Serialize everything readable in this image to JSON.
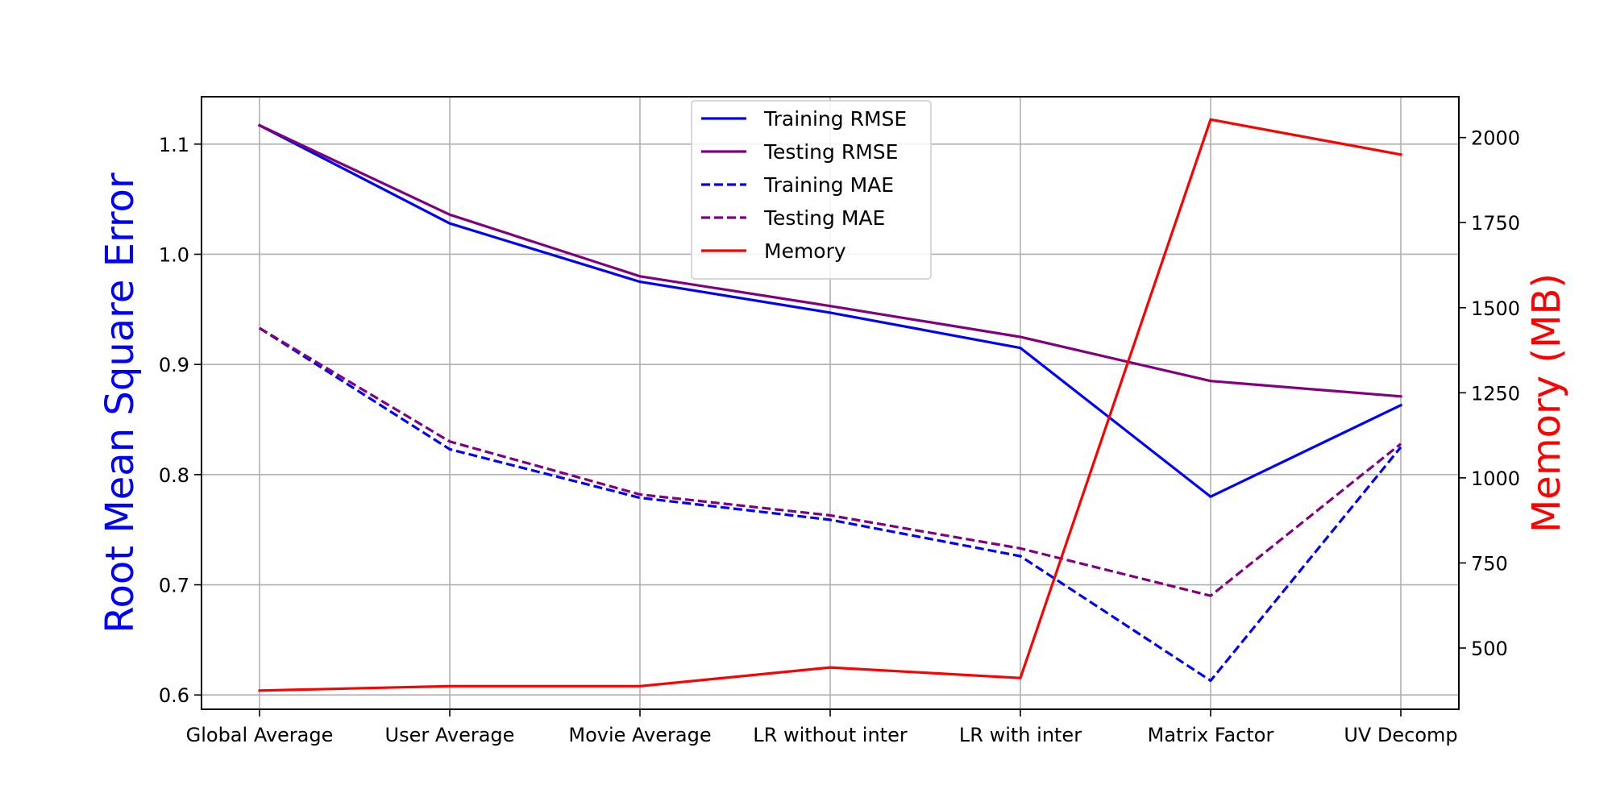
{
  "chart_data": {
    "type": "line",
    "categories": [
      "Global Average",
      "User Average",
      "Movie Average",
      "LR without inter",
      "LR with inter",
      "Matrix Factor",
      "UV Decomp"
    ],
    "ylabel": "Root Mean Square Error",
    "y2label": "Memory (MB)",
    "ylim": [
      0.587,
      1.143
    ],
    "y2lim": [
      320,
      2120
    ],
    "yticks": [
      0.6,
      0.7,
      0.8,
      0.9,
      1.0,
      1.1
    ],
    "yticklabels": [
      "0.6",
      "0.7",
      "0.8",
      "0.9",
      "1.0",
      "1.1"
    ],
    "y2ticks": [
      500,
      750,
      1000,
      1250,
      1500,
      1750,
      2000
    ],
    "y2ticklabels": [
      "500",
      "750",
      "1000",
      "1250",
      "1500",
      "1750",
      "2000"
    ],
    "grid": true,
    "legend_placement": "upper-center",
    "ylabel_color": "#0000ff",
    "y2label_color": "#ff0000",
    "series": [
      {
        "name": "Training RMSE",
        "axis": "left",
        "color": "#0000ff",
        "dashed": false,
        "values": [
          1.117,
          1.028,
          0.975,
          0.947,
          0.915,
          0.78,
          0.863
        ]
      },
      {
        "name": "Testing RMSE",
        "axis": "left",
        "color": "#800080",
        "dashed": false,
        "values": [
          1.117,
          1.036,
          0.98,
          0.953,
          0.925,
          0.885,
          0.871
        ]
      },
      {
        "name": "Training MAE",
        "axis": "left",
        "color": "#0000ff",
        "dashed": true,
        "values": [
          0.933,
          0.823,
          0.779,
          0.759,
          0.726,
          0.613,
          0.825
        ]
      },
      {
        "name": "Testing MAE",
        "axis": "left",
        "color": "#800080",
        "dashed": true,
        "values": [
          0.933,
          0.83,
          0.782,
          0.763,
          0.733,
          0.69,
          0.828
        ]
      },
      {
        "name": "Memory",
        "axis": "right",
        "color": "#ff0000",
        "dashed": false,
        "values": [
          375,
          388,
          388,
          443,
          412,
          2053,
          1950
        ]
      }
    ]
  }
}
